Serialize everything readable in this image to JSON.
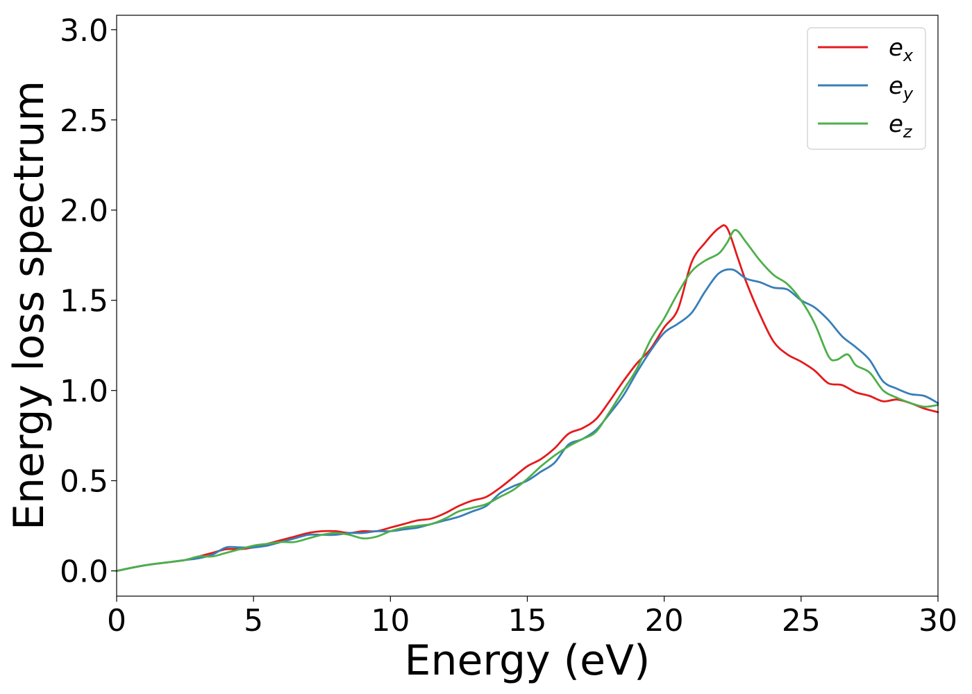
{
  "chart_data": {
    "type": "line",
    "xlabel": "Energy (eV)",
    "ylabel": "Energy loss spectrum",
    "xlim": [
      0,
      30
    ],
    "ylim": [
      -0.14,
      3.08
    ],
    "xticks": [
      0,
      5,
      10,
      15,
      20,
      25,
      30
    ],
    "xtick_labels": [
      "0",
      "5",
      "10",
      "15",
      "20",
      "25",
      "30"
    ],
    "yticks": [
      0.0,
      0.5,
      1.0,
      1.5,
      2.0,
      2.5,
      3.0
    ],
    "ytick_labels": [
      "0.0",
      "0.5",
      "1.0",
      "1.5",
      "2.0",
      "2.5",
      "3.0"
    ],
    "grid": false,
    "legend_position": "top-right",
    "series": [
      {
        "name": "e",
        "subscript": "x",
        "color": "#e41a1c",
        "x": [
          0,
          1,
          2,
          2.5,
          3,
          3.5,
          4,
          4.5,
          5,
          5.5,
          6,
          6.5,
          7,
          7.5,
          8,
          8.5,
          9,
          9.5,
          10,
          10.5,
          11,
          11.5,
          12,
          12.5,
          13,
          13.5,
          14,
          14.5,
          15,
          15.5,
          16,
          16.5,
          17,
          17.5,
          18,
          18.5,
          19,
          19.5,
          20,
          20.5,
          21,
          21.5,
          22,
          22.3,
          22.7,
          23,
          23.5,
          24,
          24.5,
          25,
          25.5,
          26,
          26.5,
          27,
          27.5,
          28,
          28.5,
          29,
          29.5,
          30
        ],
        "y": [
          0.0,
          0.03,
          0.05,
          0.06,
          0.08,
          0.1,
          0.12,
          0.12,
          0.13,
          0.15,
          0.17,
          0.19,
          0.21,
          0.22,
          0.22,
          0.21,
          0.22,
          0.22,
          0.24,
          0.26,
          0.28,
          0.29,
          0.32,
          0.36,
          0.39,
          0.41,
          0.46,
          0.52,
          0.58,
          0.62,
          0.68,
          0.76,
          0.79,
          0.84,
          0.94,
          1.05,
          1.15,
          1.23,
          1.35,
          1.45,
          1.71,
          1.82,
          1.9,
          1.9,
          1.73,
          1.6,
          1.42,
          1.27,
          1.2,
          1.16,
          1.11,
          1.04,
          1.03,
          0.99,
          0.97,
          0.94,
          0.95,
          0.93,
          0.9,
          0.88
        ]
      },
      {
        "name": "e",
        "subscript": "y",
        "color": "#377eb8",
        "x": [
          0,
          1,
          2,
          2.5,
          3,
          3.5,
          4,
          4.5,
          5,
          5.5,
          6,
          6.5,
          7,
          7.5,
          8,
          8.5,
          9,
          9.5,
          10,
          10.5,
          11,
          11.5,
          12,
          12.5,
          13,
          13.5,
          14,
          14.5,
          15,
          15.5,
          16,
          16.5,
          17,
          17.5,
          18,
          18.5,
          19,
          19.5,
          20,
          20.5,
          21,
          21.5,
          22,
          22.5,
          23,
          23.5,
          24,
          24.5,
          25,
          25.5,
          26,
          26.5,
          27,
          27.5,
          28,
          28.5,
          29,
          29.5,
          30
        ],
        "y": [
          0.0,
          0.03,
          0.05,
          0.06,
          0.07,
          0.09,
          0.13,
          0.13,
          0.13,
          0.14,
          0.16,
          0.18,
          0.2,
          0.2,
          0.2,
          0.21,
          0.21,
          0.22,
          0.22,
          0.23,
          0.24,
          0.26,
          0.28,
          0.3,
          0.33,
          0.36,
          0.43,
          0.47,
          0.5,
          0.55,
          0.6,
          0.7,
          0.73,
          0.78,
          0.87,
          0.97,
          1.1,
          1.22,
          1.32,
          1.37,
          1.43,
          1.55,
          1.65,
          1.67,
          1.62,
          1.6,
          1.57,
          1.56,
          1.5,
          1.46,
          1.39,
          1.3,
          1.24,
          1.17,
          1.05,
          1.01,
          0.98,
          0.97,
          0.93
        ]
      },
      {
        "name": "e",
        "subscript": "z",
        "color": "#4daf4a",
        "x": [
          0,
          1,
          2,
          2.5,
          3,
          3.5,
          4,
          4.5,
          5,
          5.5,
          6,
          6.5,
          7,
          7.5,
          8,
          8.5,
          9,
          9.5,
          10,
          10.5,
          11,
          11.5,
          12,
          12.5,
          13,
          13.5,
          14,
          14.5,
          15,
          15.5,
          16,
          16.5,
          17,
          17.5,
          18,
          18.5,
          19,
          19.5,
          20,
          20.5,
          21,
          21.5,
          22,
          22.3,
          22.6,
          23,
          23.5,
          24,
          24.5,
          25,
          25.5,
          26,
          26.3,
          26.7,
          27,
          27.5,
          28,
          28.5,
          29,
          29.5,
          30
        ],
        "y": [
          0.0,
          0.03,
          0.05,
          0.06,
          0.08,
          0.08,
          0.1,
          0.12,
          0.14,
          0.15,
          0.16,
          0.16,
          0.18,
          0.2,
          0.21,
          0.2,
          0.18,
          0.19,
          0.22,
          0.24,
          0.25,
          0.26,
          0.29,
          0.33,
          0.35,
          0.37,
          0.41,
          0.45,
          0.51,
          0.58,
          0.64,
          0.69,
          0.73,
          0.77,
          0.88,
          1.0,
          1.12,
          1.28,
          1.4,
          1.54,
          1.66,
          1.72,
          1.76,
          1.82,
          1.89,
          1.82,
          1.72,
          1.64,
          1.59,
          1.5,
          1.37,
          1.19,
          1.17,
          1.2,
          1.14,
          1.1,
          1.0,
          0.96,
          0.93,
          0.91,
          0.92
        ]
      }
    ]
  }
}
